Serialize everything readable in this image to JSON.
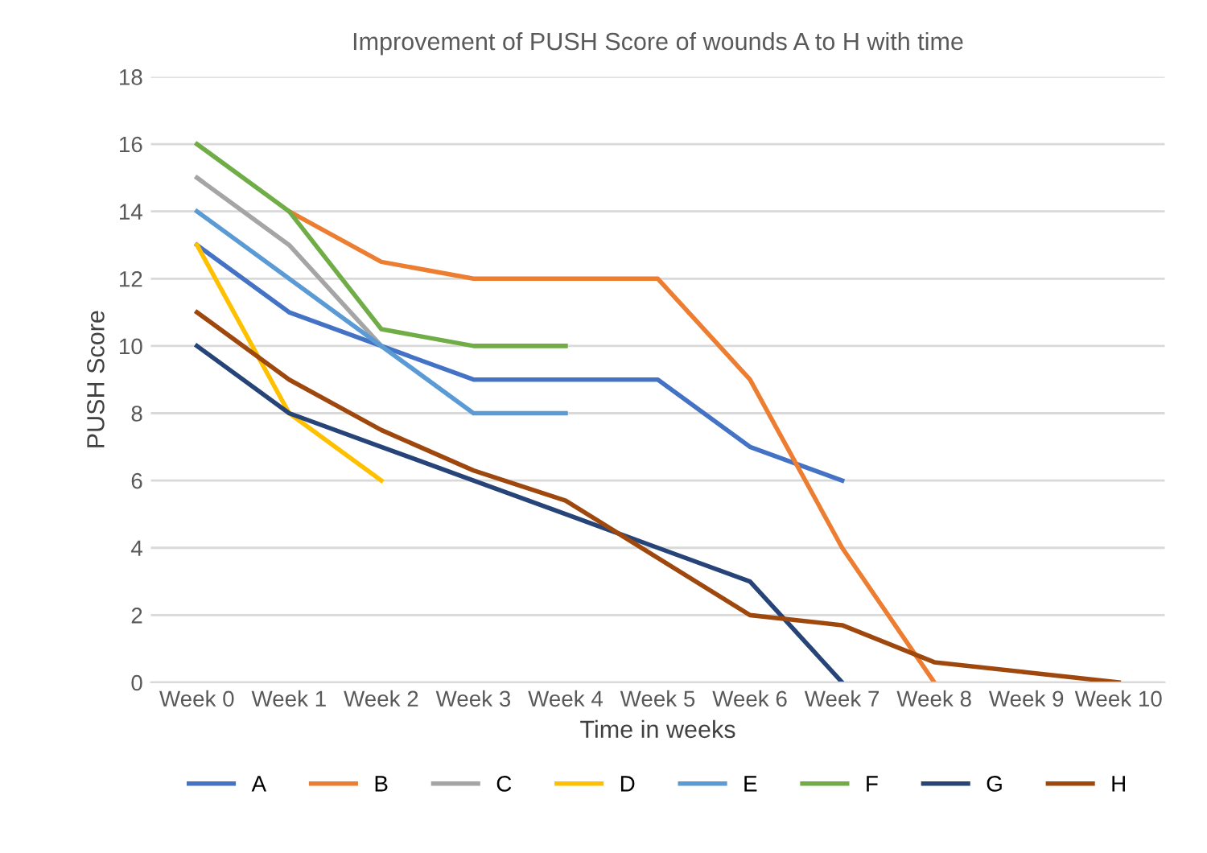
{
  "chart_data": {
    "type": "line",
    "title": "Improvement of PUSH Score of wounds A to H with time",
    "xlabel": "Time in weeks",
    "ylabel": "PUSH Score",
    "categories": [
      "Week 0",
      "Week 1",
      "Week 2",
      "Week 3",
      "Week 4",
      "Week 5",
      "Week 6",
      "Week 7",
      "Week 8",
      "Week 9",
      "Week 10"
    ],
    "ylim": [
      0,
      18
    ],
    "yticks": [
      0,
      2,
      4,
      6,
      8,
      10,
      12,
      14,
      16,
      18
    ],
    "grid": "y",
    "legend": "bottom",
    "marker": "none",
    "line_style": "solid",
    "series": [
      {
        "name": "A",
        "color": "#4472c4",
        "values": [
          13,
          11,
          10,
          9,
          9,
          9,
          7,
          6,
          null,
          null,
          null
        ]
      },
      {
        "name": "B",
        "color": "#ed7d31",
        "values": [
          null,
          14,
          12.5,
          12,
          12,
          12,
          9,
          4,
          0,
          null,
          null
        ]
      },
      {
        "name": "C",
        "color": "#a5a5a5",
        "values": [
          15,
          13,
          10,
          null,
          null,
          null,
          null,
          null,
          null,
          null,
          null
        ]
      },
      {
        "name": "D",
        "color": "#ffc000",
        "values": [
          13,
          8,
          6,
          null,
          null,
          null,
          null,
          null,
          null,
          null,
          null
        ]
      },
      {
        "name": "E",
        "color": "#5b9bd5",
        "values": [
          14,
          12,
          10,
          8,
          8,
          null,
          null,
          null,
          null,
          null,
          null
        ]
      },
      {
        "name": "F",
        "color": "#70ad47",
        "values": [
          16,
          14,
          10.5,
          10,
          10,
          null,
          null,
          null,
          null,
          null,
          null
        ]
      },
      {
        "name": "G",
        "color": "#264478",
        "values": [
          10,
          8,
          7,
          6,
          5,
          4,
          3,
          0,
          null,
          null,
          null
        ]
      },
      {
        "name": "H",
        "color": "#9e480e",
        "values": [
          11,
          9,
          7.5,
          6.3,
          5.4,
          3.7,
          2,
          1.7,
          0.6,
          0.3,
          0
        ]
      }
    ]
  }
}
